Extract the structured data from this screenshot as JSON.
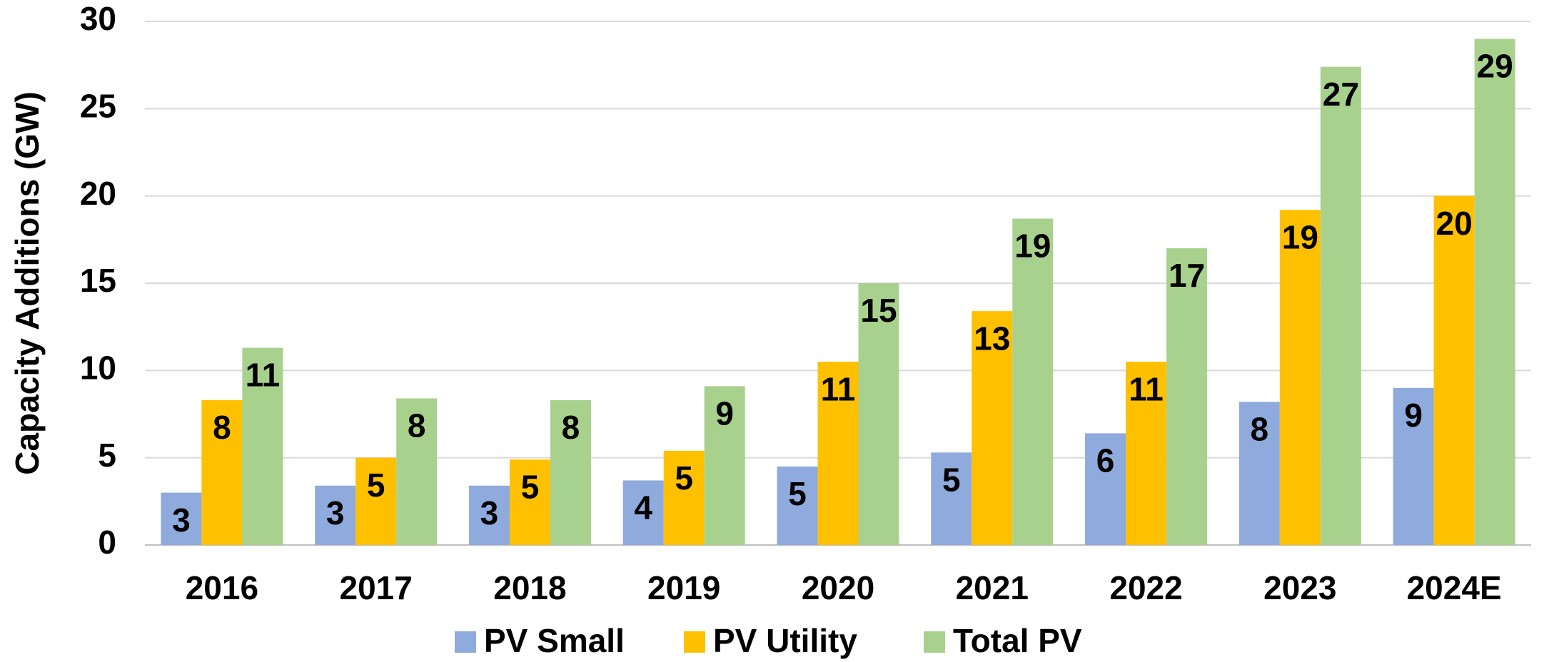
{
  "chart_data": {
    "type": "bar",
    "y_label": "Capacity Additions (GW)",
    "categories": [
      "2016",
      "2017",
      "2018",
      "2019",
      "2020",
      "2021",
      "2022",
      "2023",
      "2024E"
    ],
    "series": [
      {
        "name": "PV Small",
        "color": "#8faadc",
        "values": [
          3.0,
          3.4,
          3.4,
          3.7,
          4.5,
          5.3,
          6.4,
          8.2,
          9.0
        ],
        "value_labels": [
          "3",
          "3",
          "3",
          "4",
          "5",
          "5",
          "6",
          "8",
          "9"
        ]
      },
      {
        "name": "PV Utility",
        "color": "#ffc000",
        "values": [
          8.3,
          5.0,
          4.9,
          5.4,
          10.5,
          13.4,
          10.5,
          19.2,
          20.0
        ],
        "value_labels": [
          "8",
          "5",
          "5",
          "5",
          "11",
          "13",
          "11",
          "19",
          "20"
        ]
      },
      {
        "name": "Total PV",
        "color": "#a9d18e",
        "values": [
          11.3,
          8.4,
          8.3,
          9.1,
          15.0,
          18.7,
          17.0,
          27.4,
          29.0
        ],
        "value_labels": [
          "11",
          "8",
          "8",
          "9",
          "15",
          "19",
          "17",
          "27",
          "29"
        ]
      }
    ],
    "ylim": [
      0,
      30
    ],
    "yticks": [
      0,
      5,
      10,
      15,
      20,
      25,
      30
    ],
    "grid": true,
    "legend": "bottom"
  }
}
